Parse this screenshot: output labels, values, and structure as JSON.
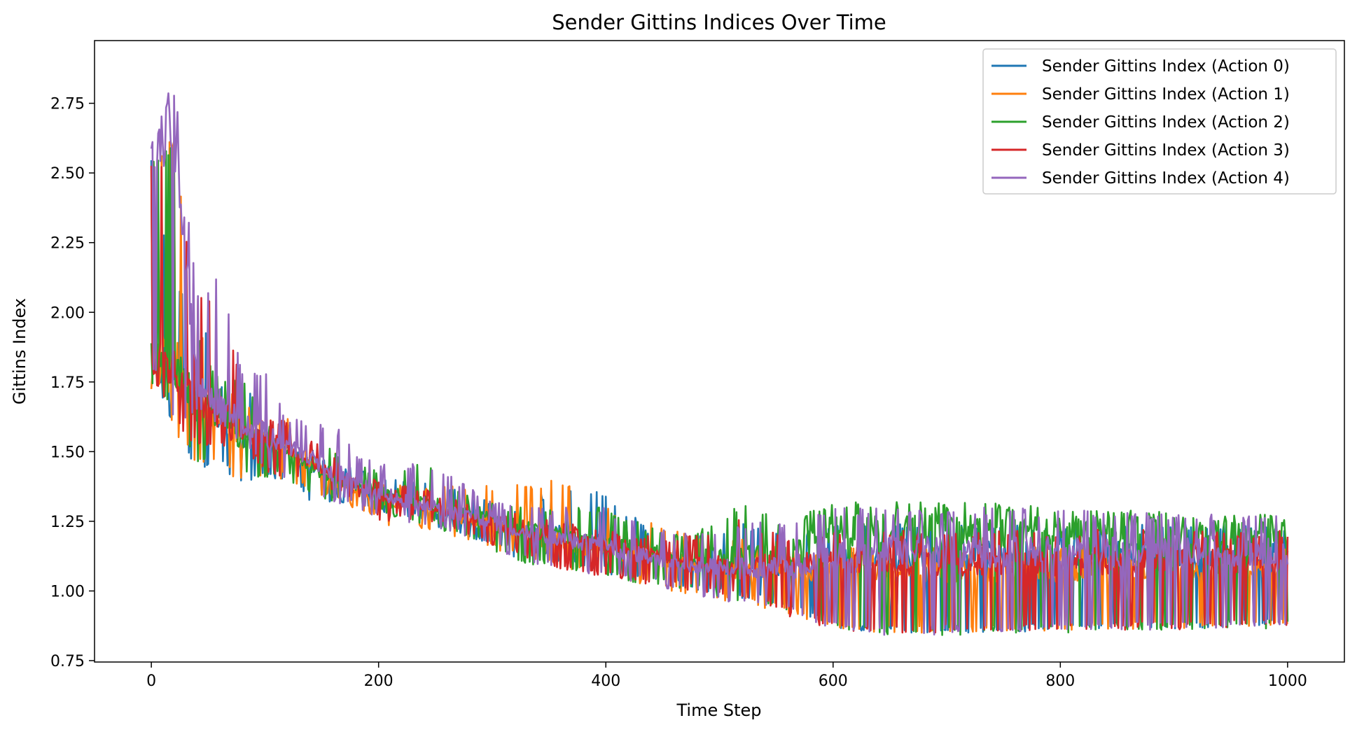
{
  "chart_data": {
    "type": "line",
    "title": "Sender Gittins Indices Over Time",
    "xlabel": "Time Step",
    "ylabel": "Gittins Index",
    "xlim": [
      -50,
      1050
    ],
    "ylim": [
      0.745,
      2.975
    ],
    "xticks": [
      0,
      200,
      400,
      600,
      800,
      1000
    ],
    "yticks": [
      0.75,
      1.0,
      1.25,
      1.5,
      1.75,
      2.0,
      2.25,
      2.5,
      2.75
    ],
    "ytick_labels": [
      "0.75",
      "1.00",
      "1.25",
      "1.50",
      "1.75",
      "2.00",
      "2.25",
      "2.50",
      "2.75"
    ],
    "grid": false,
    "legend_position": "top-right",
    "legend": [
      "Sender Gittins Index (Action 0)",
      "Sender Gittins Index (Action 1)",
      "Sender Gittins Index (Action 2)",
      "Sender Gittins Index (Action 3)",
      "Sender Gittins Index (Action 4)"
    ],
    "series": [
      {
        "name": "Sender Gittins Index (Action 0)",
        "color": "#1f77b4",
        "x": [
          0,
          20,
          40,
          60,
          80,
          100,
          120,
          140,
          160,
          180,
          200,
          240,
          280,
          320,
          360,
          400,
          440,
          480,
          520,
          560,
          600,
          640,
          680,
          720,
          760,
          800,
          840,
          880,
          920,
          960,
          1000
        ],
        "values": [
          1.81,
          1.8,
          1.68,
          1.62,
          1.55,
          1.55,
          1.5,
          1.45,
          1.4,
          1.38,
          1.35,
          1.3,
          1.25,
          1.22,
          1.2,
          1.17,
          1.13,
          1.1,
          1.08,
          1.08,
          1.1,
          1.12,
          1.12,
          1.13,
          1.13,
          1.13,
          1.13,
          1.13,
          1.13,
          1.13,
          1.13
        ],
        "low": [
          1.81,
          1.56,
          1.42,
          1.45,
          1.37,
          1.4,
          1.4,
          1.31,
          1.32,
          1.3,
          1.28,
          1.25,
          1.18,
          1.12,
          1.1,
          1.06,
          1.04,
          1.0,
          0.97,
          0.94,
          0.87,
          0.85,
          0.85,
          0.85,
          0.85,
          0.86,
          0.86,
          0.86,
          0.86,
          0.87,
          0.87
        ],
        "high": [
          2.55,
          2.1,
          2.05,
          1.76,
          1.77,
          1.61,
          1.61,
          1.51,
          1.45,
          1.44,
          1.41,
          1.4,
          1.35,
          1.3,
          1.39,
          1.35,
          1.22,
          1.2,
          1.25,
          1.2,
          1.24,
          1.24,
          1.24,
          1.24,
          1.24,
          1.24,
          1.24,
          1.24,
          1.24,
          1.24,
          1.23
        ]
      },
      {
        "name": "Sender Gittins Index (Action 1)",
        "color": "#ff7f0e",
        "x": [
          0,
          20,
          40,
          60,
          80,
          100,
          120,
          140,
          160,
          180,
          200,
          240,
          280,
          320,
          360,
          400,
          440,
          480,
          520,
          560,
          600,
          640,
          680,
          720,
          760,
          800,
          840,
          880,
          920,
          960,
          1000
        ],
        "values": [
          1.81,
          1.8,
          1.68,
          1.62,
          1.55,
          1.55,
          1.5,
          1.45,
          1.4,
          1.36,
          1.33,
          1.3,
          1.26,
          1.22,
          1.18,
          1.15,
          1.12,
          1.1,
          1.07,
          1.07,
          1.07,
          1.07,
          1.07,
          1.07,
          1.07,
          1.07,
          1.08,
          1.08,
          1.08,
          1.08,
          1.09
        ],
        "low": [
          1.81,
          1.57,
          1.45,
          1.45,
          1.38,
          1.4,
          1.4,
          1.35,
          1.32,
          1.28,
          1.24,
          1.22,
          1.17,
          1.13,
          1.08,
          1.04,
          1.01,
          0.98,
          0.95,
          0.92,
          0.87,
          0.85,
          0.85,
          0.85,
          0.85,
          0.86,
          0.86,
          0.86,
          0.86,
          0.87,
          0.87
        ],
        "high": [
          2.55,
          2.63,
          2.0,
          1.75,
          1.7,
          1.61,
          1.62,
          1.52,
          1.53,
          1.42,
          1.4,
          1.38,
          1.38,
          1.38,
          1.41,
          1.31,
          1.25,
          1.19,
          1.19,
          1.15,
          1.16,
          1.16,
          1.16,
          1.16,
          1.16,
          1.16,
          1.16,
          1.16,
          1.16,
          1.16,
          1.15
        ]
      },
      {
        "name": "Sender Gittins Index (Action 2)",
        "color": "#2ca02c",
        "x": [
          0,
          20,
          40,
          60,
          80,
          100,
          120,
          140,
          160,
          180,
          200,
          240,
          280,
          320,
          360,
          400,
          440,
          480,
          520,
          560,
          600,
          640,
          680,
          720,
          760,
          800,
          840,
          880,
          920,
          960,
          1000
        ],
        "values": [
          1.81,
          1.8,
          1.68,
          1.62,
          1.55,
          1.55,
          1.5,
          1.45,
          1.4,
          1.38,
          1.36,
          1.32,
          1.28,
          1.24,
          1.2,
          1.17,
          1.14,
          1.12,
          1.12,
          1.14,
          1.22,
          1.22,
          1.22,
          1.22,
          1.21,
          1.21,
          1.21,
          1.21,
          1.2,
          1.2,
          1.2
        ],
        "low": [
          1.81,
          1.6,
          1.45,
          1.46,
          1.4,
          1.4,
          1.4,
          1.34,
          1.32,
          1.3,
          1.28,
          1.24,
          1.18,
          1.1,
          1.08,
          1.05,
          1.02,
          1.0,
          0.96,
          0.93,
          0.87,
          0.84,
          0.84,
          0.84,
          0.85,
          0.85,
          0.85,
          0.86,
          0.86,
          0.86,
          0.86
        ],
        "high": [
          2.55,
          2.6,
          1.95,
          1.75,
          1.79,
          1.6,
          1.6,
          1.52,
          1.52,
          1.45,
          1.45,
          1.46,
          1.34,
          1.3,
          1.3,
          1.3,
          1.23,
          1.21,
          1.32,
          1.25,
          1.32,
          1.32,
          1.32,
          1.32,
          1.31,
          1.31,
          1.3,
          1.29,
          1.28,
          1.28,
          1.27
        ]
      },
      {
        "name": "Sender Gittins Index (Action 3)",
        "color": "#d62728",
        "x": [
          0,
          20,
          40,
          60,
          80,
          100,
          120,
          140,
          160,
          180,
          200,
          240,
          280,
          320,
          360,
          400,
          440,
          480,
          520,
          560,
          600,
          640,
          680,
          720,
          760,
          800,
          840,
          880,
          920,
          960,
          1000
        ],
        "values": [
          1.81,
          1.8,
          1.7,
          1.65,
          1.57,
          1.55,
          1.52,
          1.46,
          1.42,
          1.38,
          1.34,
          1.3,
          1.26,
          1.22,
          1.19,
          1.16,
          1.13,
          1.1,
          1.09,
          1.1,
          1.1,
          1.1,
          1.1,
          1.1,
          1.1,
          1.1,
          1.1,
          1.11,
          1.11,
          1.11,
          1.11
        ],
        "low": [
          1.81,
          1.6,
          1.52,
          1.52,
          1.52,
          1.42,
          1.4,
          1.38,
          1.35,
          1.32,
          1.25,
          1.25,
          1.19,
          1.13,
          1.08,
          1.05,
          1.02,
          1.0,
          0.97,
          0.91,
          0.86,
          0.85,
          0.85,
          0.85,
          0.85,
          0.86,
          0.86,
          0.86,
          0.86,
          0.87,
          0.87
        ],
        "high": [
          2.55,
          2.53,
          2.05,
          2.06,
          1.75,
          1.62,
          1.63,
          1.54,
          1.5,
          1.42,
          1.4,
          1.37,
          1.32,
          1.28,
          1.26,
          1.22,
          1.2,
          1.2,
          1.26,
          1.2,
          1.22,
          1.22,
          1.22,
          1.22,
          1.22,
          1.22,
          1.22,
          1.22,
          1.22,
          1.21,
          1.22
        ]
      },
      {
        "name": "Sender Gittins Index (Action 4)",
        "color": "#9467bd",
        "x": [
          0,
          20,
          40,
          60,
          80,
          100,
          120,
          140,
          160,
          180,
          200,
          240,
          280,
          320,
          360,
          400,
          440,
          480,
          520,
          560,
          600,
          640,
          680,
          720,
          760,
          800,
          840,
          880,
          920,
          960,
          1000
        ],
        "values": [
          2.55,
          2.7,
          1.72,
          1.68,
          1.6,
          1.56,
          1.52,
          1.47,
          1.43,
          1.39,
          1.35,
          1.31,
          1.27,
          1.22,
          1.19,
          1.16,
          1.12,
          1.09,
          1.08,
          1.08,
          1.12,
          1.14,
          1.14,
          1.14,
          1.14,
          1.14,
          1.14,
          1.14,
          1.14,
          1.14,
          1.14
        ],
        "low": [
          1.81,
          1.6,
          1.64,
          1.6,
          1.53,
          1.42,
          1.4,
          1.31,
          1.32,
          1.3,
          1.26,
          1.24,
          1.18,
          1.12,
          1.07,
          1.05,
          1.02,
          0.98,
          0.95,
          0.92,
          0.86,
          0.84,
          0.84,
          0.85,
          0.85,
          0.86,
          0.86,
          0.86,
          0.86,
          0.87,
          0.87
        ],
        "high": [
          2.55,
          2.87,
          2.06,
          2.13,
          1.8,
          1.8,
          1.62,
          1.61,
          1.61,
          1.49,
          1.46,
          1.46,
          1.38,
          1.3,
          1.3,
          1.3,
          1.23,
          1.2,
          1.25,
          1.25,
          1.3,
          1.3,
          1.3,
          1.3,
          1.3,
          1.29,
          1.29,
          1.28,
          1.28,
          1.27,
          1.27
        ]
      }
    ]
  }
}
